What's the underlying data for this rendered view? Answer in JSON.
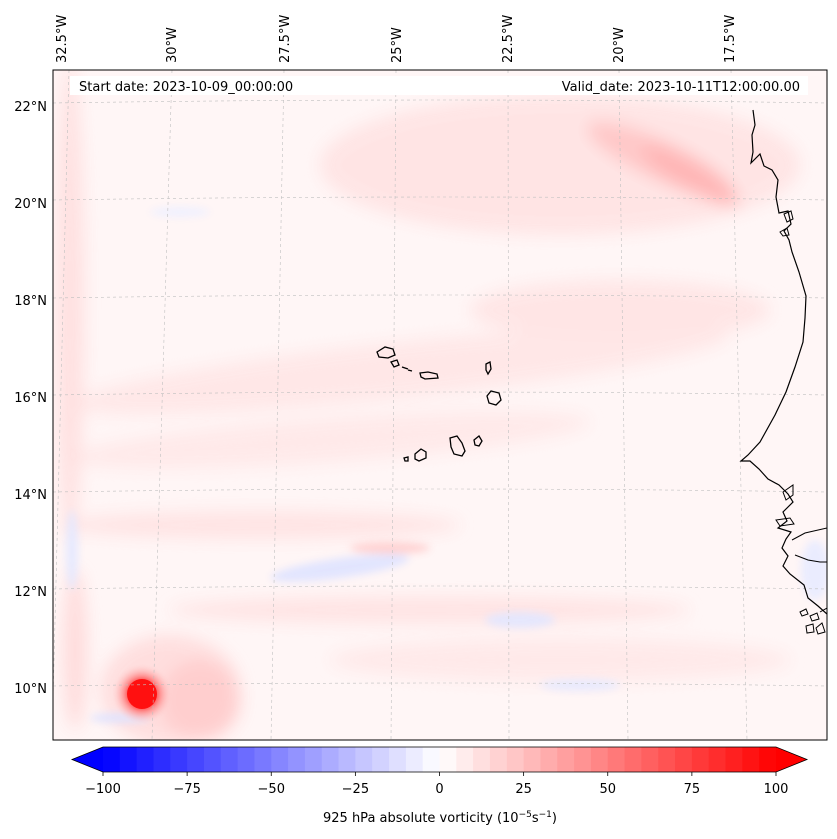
{
  "map": {
    "start_label": "Start date: 2023-10-09_00:00:00",
    "valid_label": "Valid_date: 2023-10-11T12:00:00.00",
    "lon_labels": [
      "32.5°W",
      "30°W",
      "27.5°W",
      "25°W",
      "22.5°W",
      "20°W",
      "17.5°W"
    ],
    "lat_labels": [
      "22°N",
      "20°N",
      "18°N",
      "16°N",
      "14°N",
      "12°N",
      "10°N"
    ]
  },
  "colorbar": {
    "ticks": [
      "−100",
      "−75",
      "−50",
      "−25",
      "0",
      "25",
      "50",
      "75",
      "100"
    ],
    "tick_values": [
      -100,
      -75,
      -50,
      -25,
      0,
      25,
      50,
      75,
      100
    ],
    "range": [
      -100,
      100
    ],
    "label": "925 hPa absolute vorticity (10",
    "label_exp1": "−5",
    "label_mid": "s",
    "label_exp2": "−1",
    "label_end": ")",
    "cmap": "bwr"
  },
  "colors": {
    "negative": "#0000ff",
    "neutral": "#ffffff",
    "positive": "#ff0000"
  }
}
